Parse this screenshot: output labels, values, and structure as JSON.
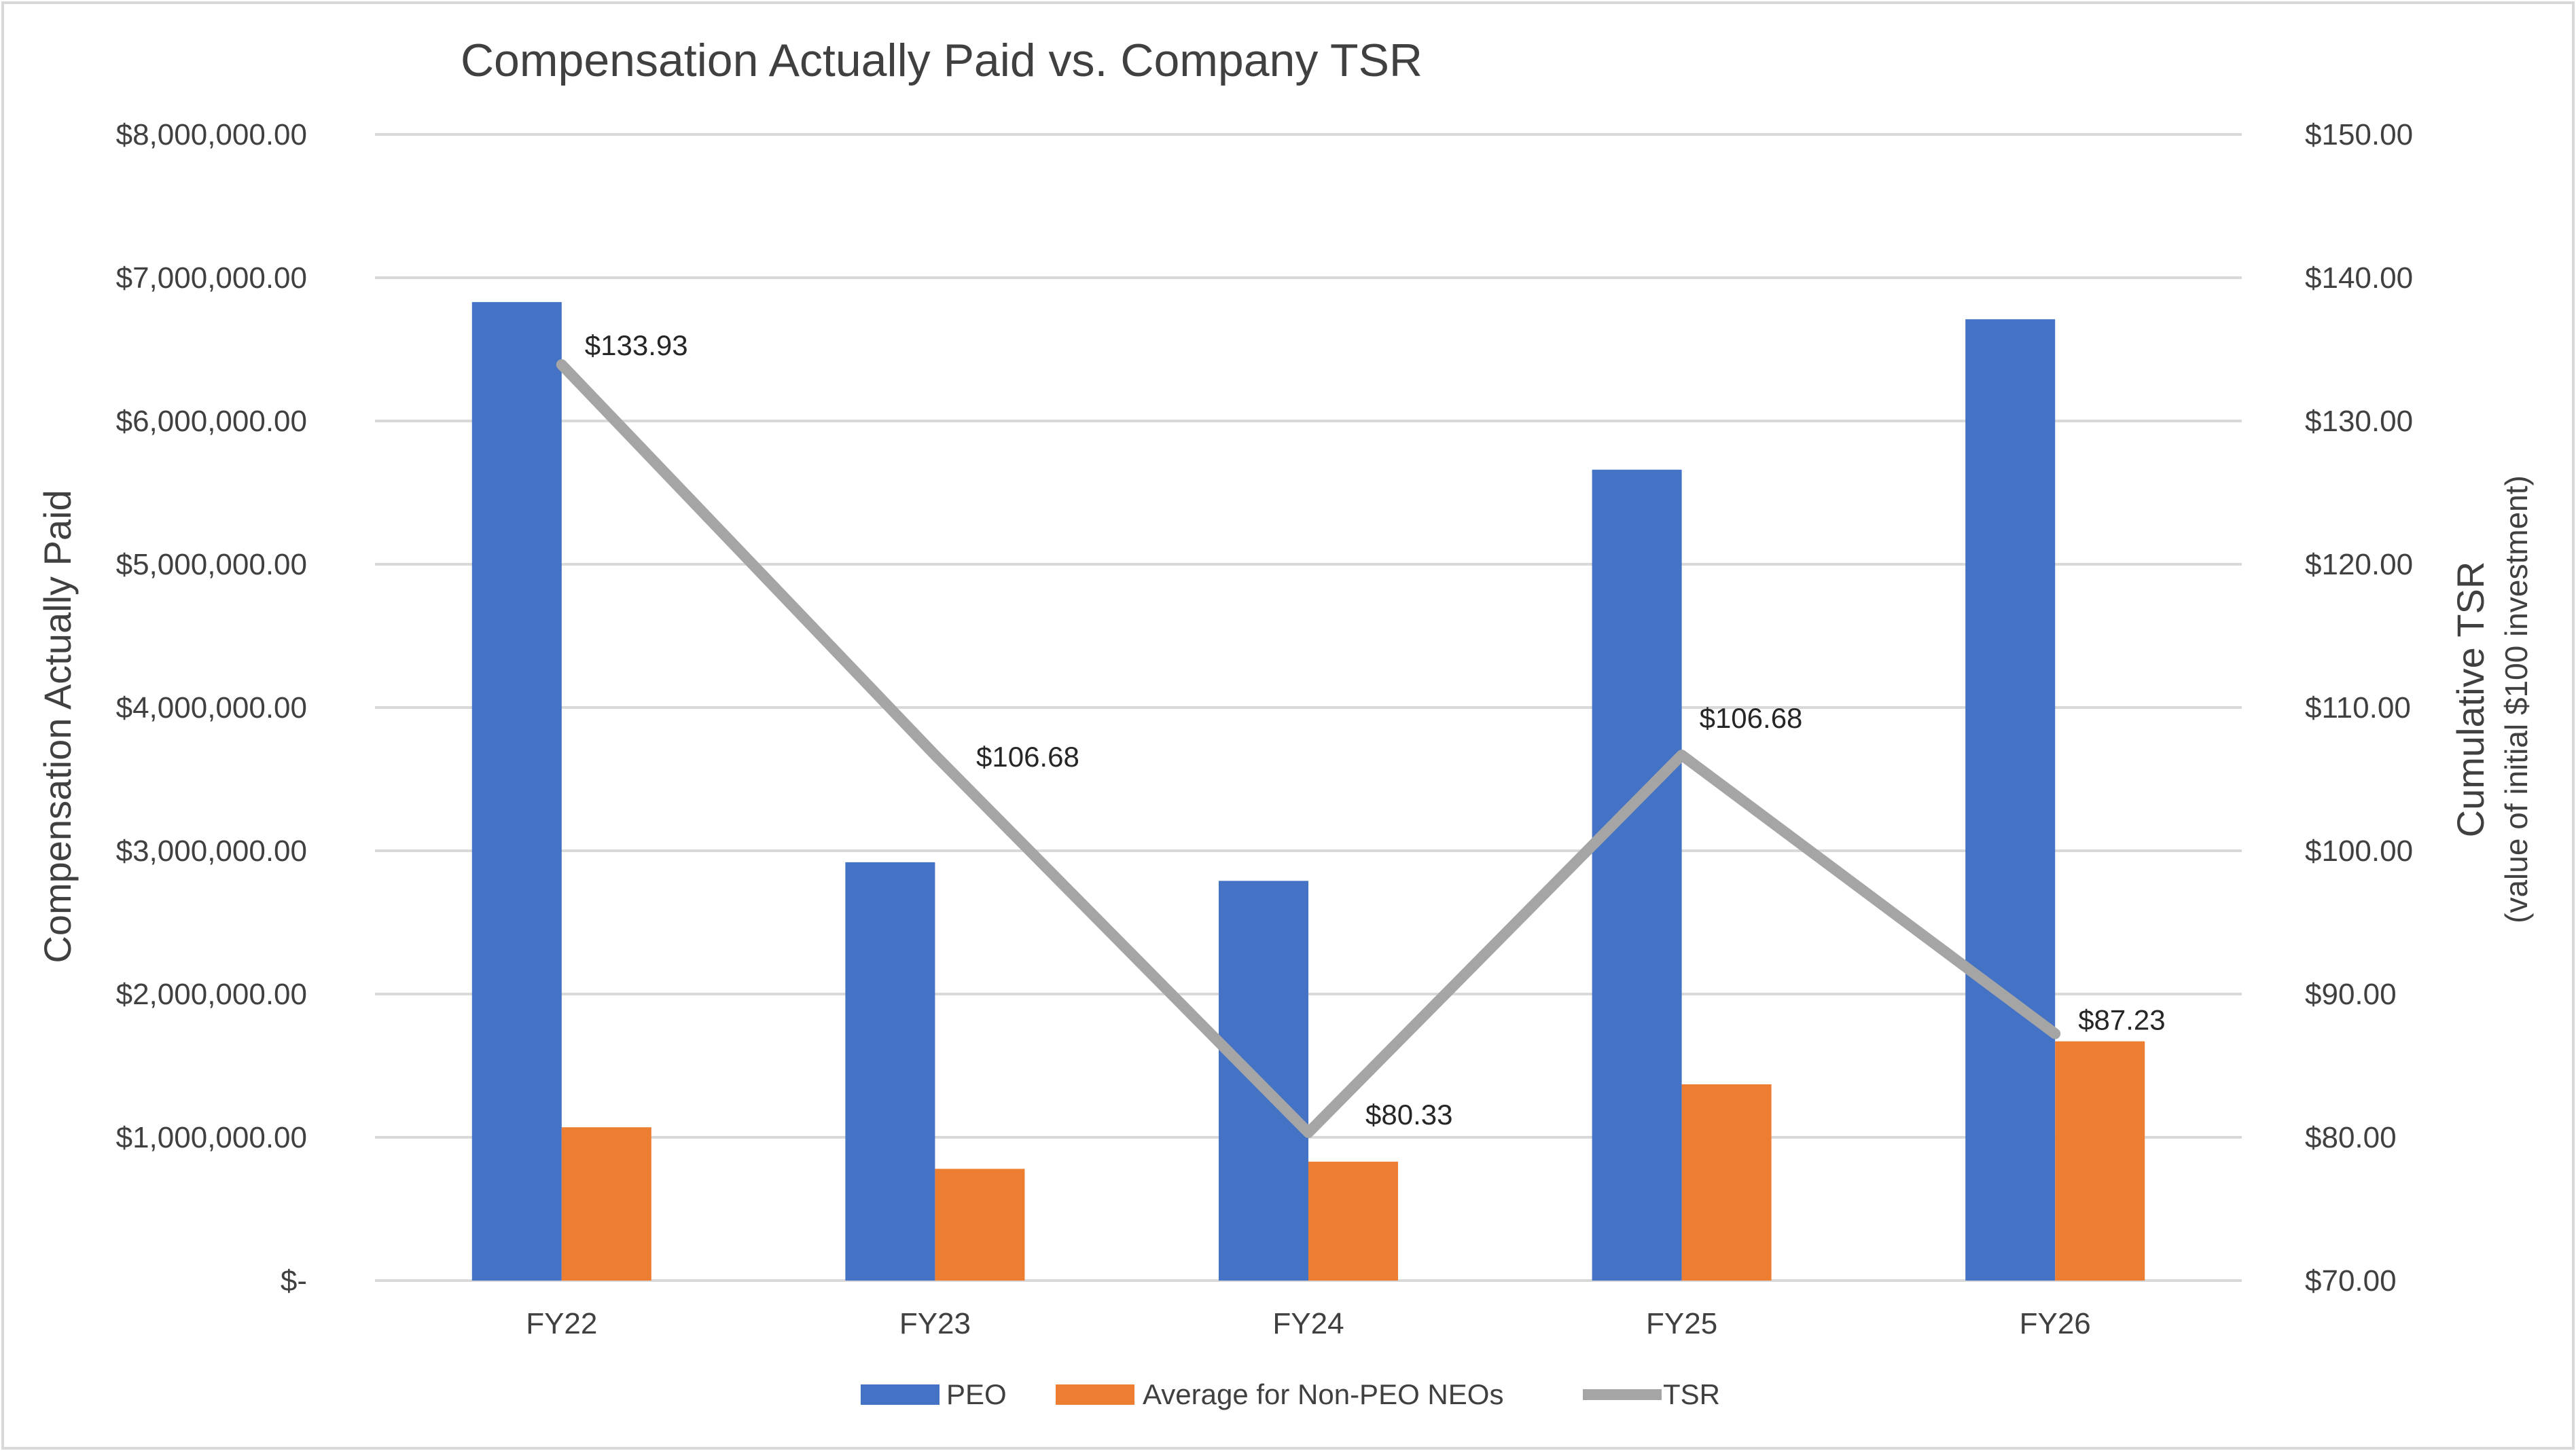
{
  "chart_data": {
    "type": "bar",
    "title": "Compensation Actually Paid vs. Company TSR",
    "categories": [
      "FY22",
      "FY23",
      "FY24",
      "FY25",
      "FY26"
    ],
    "ylabel": "Compensation Actually Paid",
    "y2label": "Cumulative TSR",
    "y2label_sub": "(value of initial $100 investment)",
    "ylim": [
      0,
      8000000
    ],
    "y2lim": [
      70,
      150
    ],
    "grid": true,
    "legend_position": "bottom",
    "yticks": [
      "$8,000,000.00",
      "$7,000,000.00",
      "$6,000,000.00",
      "$5,000,000.00",
      "$4,000,000.00",
      "$3,000,000.00",
      "$2,000,000.00",
      "$1,000,000.00",
      "$-"
    ],
    "y2ticks": [
      "$150.00",
      "$140.00",
      "$130.00",
      "$120.00",
      "$110.00",
      "$100.00",
      "$90.00",
      "$80.00",
      "$70.00"
    ],
    "series": [
      {
        "name": "PEO",
        "type": "bar",
        "axis": "left",
        "color": "#4472C4",
        "values": [
          6830000,
          2920000,
          2790000,
          5660000,
          6710000
        ]
      },
      {
        "name": "Average for Non-PEO NEOs",
        "type": "bar",
        "axis": "left",
        "color": "#ED7D31",
        "values": [
          1070000,
          780000,
          830000,
          1370000,
          1670000
        ]
      },
      {
        "name": "TSR",
        "type": "line",
        "axis": "right",
        "color": "#A5A5A5",
        "values": [
          133.93,
          106.68,
          80.33,
          106.68,
          87.23
        ],
        "labels": [
          "$133.93",
          "$106.68",
          "$80.33",
          "$106.68",
          "$87.23"
        ]
      }
    ]
  }
}
